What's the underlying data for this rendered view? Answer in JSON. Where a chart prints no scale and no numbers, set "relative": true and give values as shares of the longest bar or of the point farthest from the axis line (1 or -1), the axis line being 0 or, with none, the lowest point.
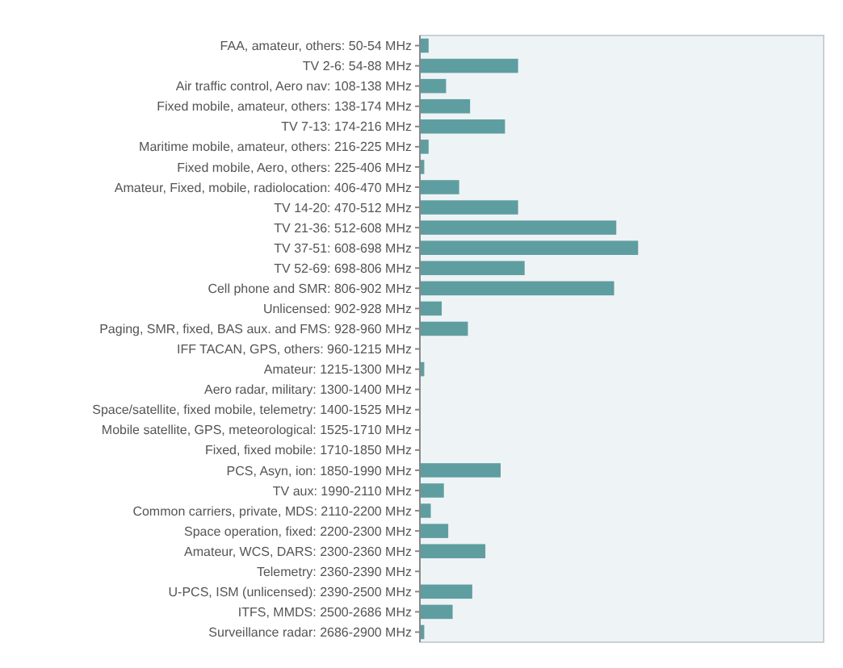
{
  "chart_data": {
    "type": "bar",
    "orientation": "horizontal",
    "relative": true,
    "color": "#5f9ea0",
    "categories": [
      "FAA, amateur, others: 50-54 MHz",
      "TV 2-6: 54-88 MHz",
      "Air traffic control, Aero nav: 108-138 MHz",
      "Fixed mobile, amateur, others: 138-174 MHz",
      "TV 7-13: 174-216 MHz",
      "Maritime mobile, amateur, others: 216-225 MHz",
      "Fixed mobile, Aero, others: 225-406 MHz",
      "Amateur, Fixed, mobile, radiolocation: 406-470 MHz",
      "TV 14-20: 470-512 MHz",
      "TV 21-36: 512-608 MHz",
      "TV 37-51: 608-698 MHz",
      "TV 52-69: 698-806 MHz",
      "Cell phone and SMR: 806-902 MHz",
      "Unlicensed: 902-928 MHz",
      "Paging, SMR, fixed, BAS aux. and FMS: 928-960 MHz",
      "IFF TACAN, GPS, others: 960-1215 MHz",
      "Amateur: 1215-1300 MHz",
      "Aero radar, military: 1300-1400 MHz",
      "Space/satellite, fixed mobile, telemetry: 1400-1525 MHz",
      "Mobile satellite, GPS, meteorological: 1525-1710 MHz",
      "Fixed, fixed mobile: 1710-1850 MHz",
      "PCS, Asyn, ion: 1850-1990 MHz",
      "TV aux: 1990-2110 MHz",
      "Common carriers, private, MDS: 2110-2200 MHz",
      "Space operation, fixed: 2200-2300 MHz",
      "Amateur, WCS, DARS: 2300-2360 MHz",
      "Telemetry: 2360-2390 MHz",
      "U-PCS, ISM (unlicensed): 2390-2500 MHz",
      "ITFS, MMDS: 2500-2686 MHz",
      "Surveillance radar: 2686-2900 MHz"
    ],
    "values": [
      0.04,
      0.45,
      0.12,
      0.23,
      0.39,
      0.04,
      0.02,
      0.18,
      0.45,
      0.9,
      1,
      0.48,
      0.89,
      0.1,
      0.22,
      0,
      0.02,
      0,
      0,
      0,
      0,
      0.37,
      0.11,
      0.05,
      0.13,
      0.3,
      0,
      0.24,
      0.15,
      0.02
    ]
  }
}
